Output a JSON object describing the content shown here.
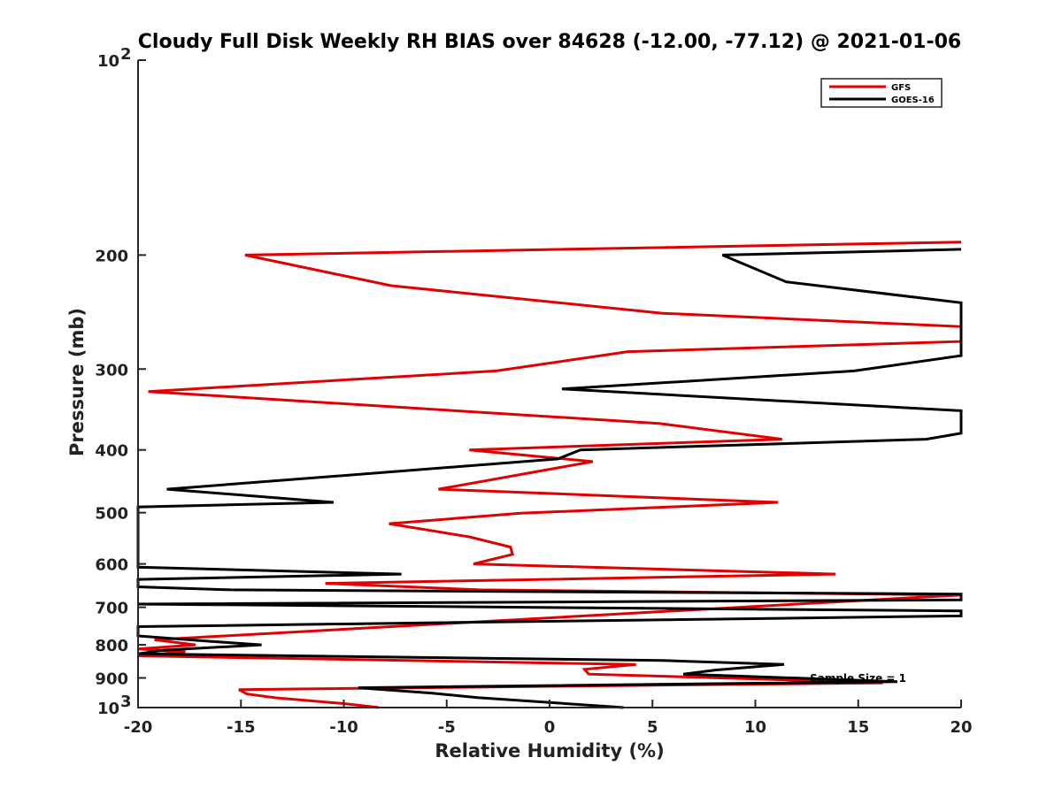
{
  "chart_data": {
    "type": "line",
    "title": "Cloudy Full Disk Weekly RH BIAS over 84628 (-12.00, -77.12) @ 2021-01-06",
    "xlabel": "Relative Humidity (%)",
    "ylabel": "Pressure (mb)",
    "xlim": [
      -20,
      20
    ],
    "ylim": [
      100,
      1000
    ],
    "yscale": "log",
    "yreversed": true,
    "xticks": [
      "-20",
      "-15",
      "-10",
      "-5",
      "0",
      "5",
      "10",
      "15",
      "20"
    ],
    "yticks": [
      {
        "value": 100,
        "label": "10",
        "sup": "2"
      },
      {
        "value": 200,
        "label": "200"
      },
      {
        "value": 300,
        "label": "300"
      },
      {
        "value": 400,
        "label": "400"
      },
      {
        "value": 500,
        "label": "500"
      },
      {
        "value": 600,
        "label": "600"
      },
      {
        "value": 700,
        "label": "700"
      },
      {
        "value": 800,
        "label": "800"
      },
      {
        "value": 900,
        "label": "900"
      },
      {
        "value": 1000,
        "label": "10",
        "sup": "3"
      }
    ],
    "grid": false,
    "legend_position": "top-right",
    "annotation": "Sample Size = 1",
    "series": [
      {
        "name": "GFS",
        "color": "#e00000",
        "points": [
          [
            20,
            191
          ],
          [
            -14.8,
            200
          ],
          [
            -7.7,
            223
          ],
          [
            5.5,
            246
          ],
          [
            20,
            258
          ],
          [
            20,
            272
          ],
          [
            3.8,
            282
          ],
          [
            -2.6,
            302
          ],
          [
            -19.5,
            325
          ],
          [
            5.3,
            364
          ],
          [
            11.3,
            385
          ],
          [
            -3.9,
            400
          ],
          [
            2.1,
            417
          ],
          [
            -5.4,
            460
          ],
          [
            11.1,
            482
          ],
          [
            -1.4,
            501
          ],
          [
            -7.8,
            520
          ],
          [
            -3.9,
            545
          ],
          [
            -1.9,
            565
          ],
          [
            -1.8,
            580
          ],
          [
            -3.7,
            600
          ],
          [
            13.9,
            622
          ],
          [
            -10.9,
            643
          ],
          [
            -3.4,
            658
          ],
          [
            20,
            670
          ],
          [
            -19.2,
            786
          ],
          [
            -17.2,
            800
          ],
          [
            -20,
            812
          ],
          [
            -17.7,
            820
          ],
          [
            -20,
            832
          ],
          [
            4.2,
            858
          ],
          [
            1.7,
            873
          ],
          [
            1.9,
            888
          ],
          [
            10,
            903
          ],
          [
            16.2,
            916
          ],
          [
            -15.1,
            938
          ],
          [
            -14.7,
            953
          ],
          [
            -13.3,
            966
          ],
          [
            -10,
            986
          ],
          [
            -8.3,
            1000
          ]
        ]
      },
      {
        "name": "GOES-16",
        "color": "#000000",
        "points": [
          [
            20,
            196
          ],
          [
            8.4,
            200
          ],
          [
            11.5,
            220
          ],
          [
            20,
            237
          ],
          [
            20,
            286
          ],
          [
            14.8,
            302
          ],
          [
            0.6,
            322
          ],
          [
            20,
            348
          ],
          [
            20,
            377
          ],
          [
            18.3,
            385
          ],
          [
            1.5,
            400
          ],
          [
            0.4,
            413
          ],
          [
            -18.6,
            460
          ],
          [
            -10.5,
            482
          ],
          [
            -20,
            490
          ],
          [
            -20,
            607
          ],
          [
            -7.2,
            622
          ],
          [
            -20,
            634
          ],
          [
            -20,
            651
          ],
          [
            -15.5,
            658
          ],
          [
            20,
            668
          ],
          [
            20,
            682
          ],
          [
            -20,
            692
          ],
          [
            20,
            709
          ],
          [
            20,
            722
          ],
          [
            -20,
            750
          ],
          [
            -20,
            775
          ],
          [
            -16.5,
            790
          ],
          [
            -14,
            800
          ],
          [
            -18.7,
            815
          ],
          [
            -20,
            826
          ],
          [
            5.5,
            846
          ],
          [
            11.4,
            858
          ],
          [
            8.1,
            875
          ],
          [
            6.5,
            888
          ],
          [
            16.9,
            912
          ],
          [
            -9.3,
            932
          ],
          [
            -5.7,
            950
          ],
          [
            -3.5,
            965
          ],
          [
            3.6,
            1000
          ]
        ]
      }
    ]
  }
}
